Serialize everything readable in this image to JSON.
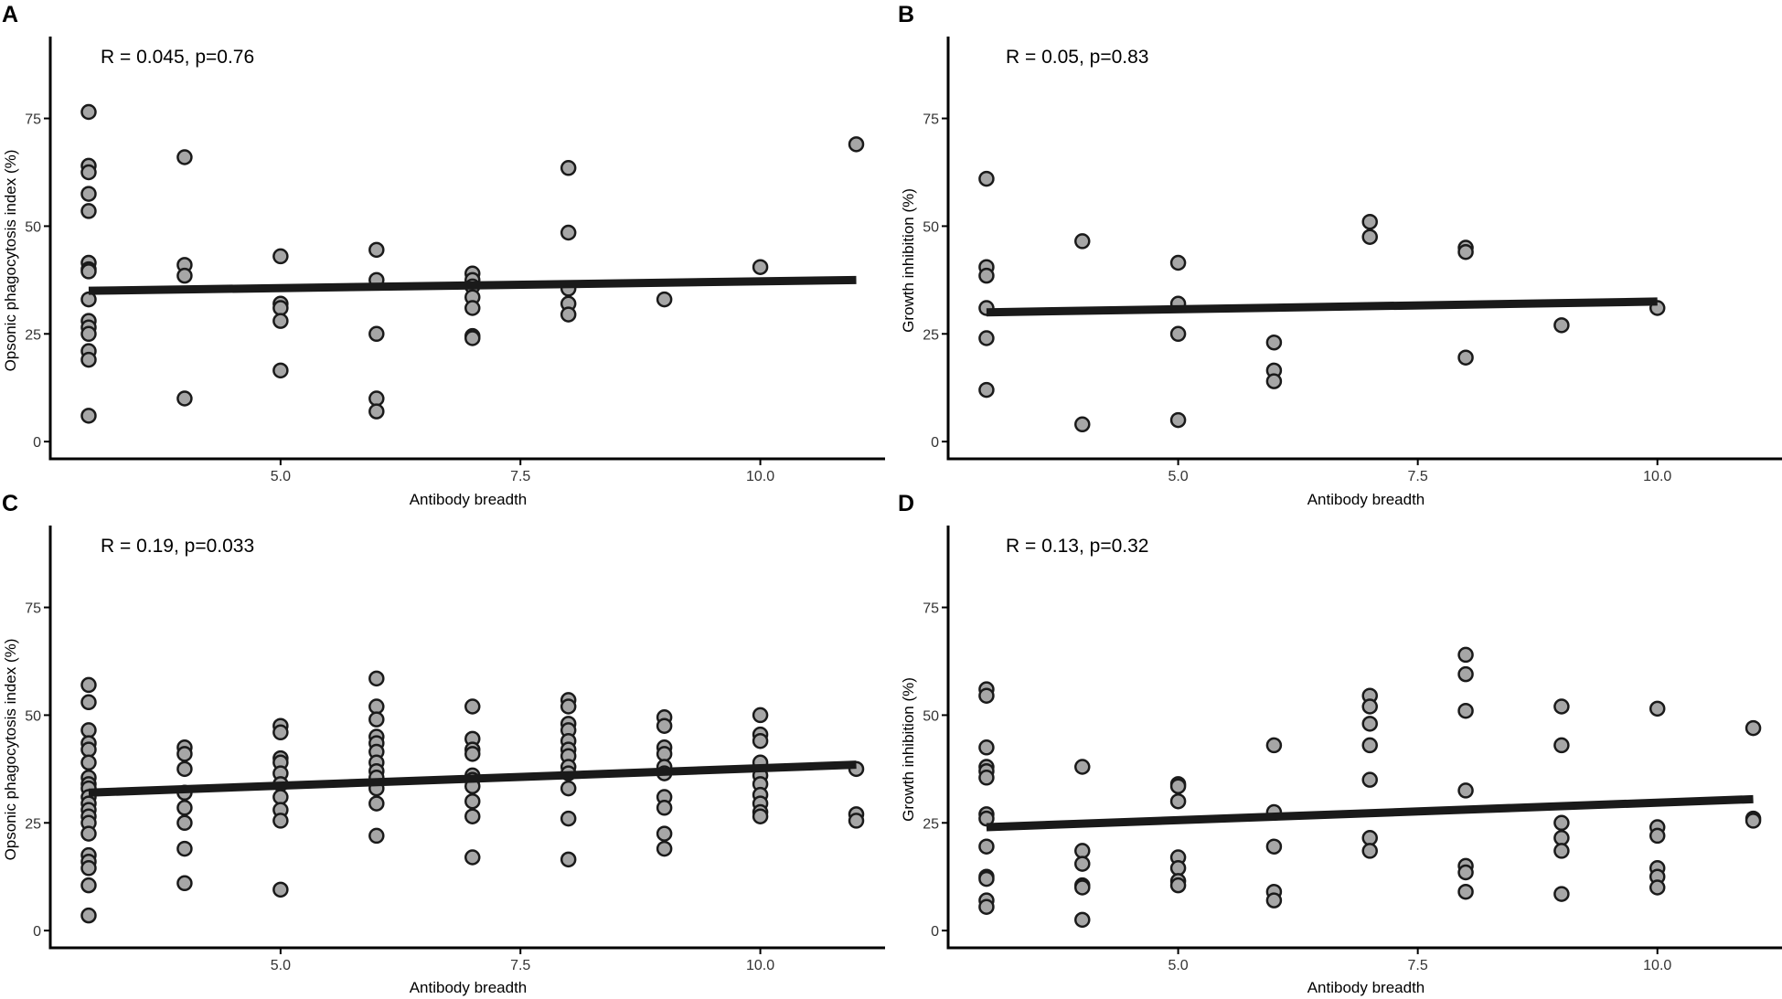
{
  "chart_data": [
    {
      "type": "scatter",
      "panel": "A",
      "annotation": "R = 0.045, p=0.76",
      "xlabel": "Antibody breadth",
      "ylabel": "Opsonic phagocytosis index (%)",
      "xlim": [
        2.6,
        11.3
      ],
      "ylim": [
        -4,
        94
      ],
      "xticks": [
        5.0,
        7.5,
        10.0
      ],
      "xtick_labels": [
        "5.0",
        "7.5",
        "10.0"
      ],
      "yticks": [
        0,
        25,
        50,
        75
      ],
      "ytick_labels": [
        "0",
        "25",
        "50",
        "75"
      ],
      "points": [
        [
          3,
          76.5
        ],
        [
          3,
          64
        ],
        [
          3,
          62.5
        ],
        [
          3,
          57.5
        ],
        [
          3,
          53.5
        ],
        [
          3,
          41.5
        ],
        [
          3,
          40
        ],
        [
          3,
          39.5
        ],
        [
          3,
          33
        ],
        [
          3,
          28
        ],
        [
          3,
          26.5
        ],
        [
          3,
          25
        ],
        [
          3,
          21
        ],
        [
          3,
          19
        ],
        [
          3,
          6
        ],
        [
          4,
          66
        ],
        [
          4,
          41
        ],
        [
          4,
          38.5
        ],
        [
          4,
          10
        ],
        [
          5,
          43
        ],
        [
          5,
          32
        ],
        [
          5,
          31
        ],
        [
          5,
          28
        ],
        [
          5,
          16.5
        ],
        [
          6,
          44.5
        ],
        [
          6,
          37.5
        ],
        [
          6,
          25
        ],
        [
          6,
          10
        ],
        [
          6,
          7
        ],
        [
          7,
          39
        ],
        [
          7,
          37.5
        ],
        [
          7,
          36
        ],
        [
          7,
          33.5
        ],
        [
          7,
          31
        ],
        [
          7,
          24.5
        ],
        [
          7,
          24
        ],
        [
          8,
          63.5
        ],
        [
          8,
          48.5
        ],
        [
          8,
          35.5
        ],
        [
          8,
          32
        ],
        [
          8,
          29.5
        ],
        [
          9,
          33
        ],
        [
          10,
          40.5
        ],
        [
          11,
          69
        ]
      ],
      "fit": {
        "x": [
          3,
          11
        ],
        "y": [
          35,
          37.5
        ]
      }
    },
    {
      "type": "scatter",
      "panel": "B",
      "annotation": "R = 0.05, p=0.83",
      "xlabel": "Antibody breadth",
      "ylabel": "Growth inhibition (%)",
      "xlim": [
        2.6,
        11.3
      ],
      "ylim": [
        -4,
        94
      ],
      "xticks": [
        5.0,
        7.5,
        10.0
      ],
      "xtick_labels": [
        "5.0",
        "7.5",
        "10.0"
      ],
      "yticks": [
        0,
        25,
        50,
        75
      ],
      "ytick_labels": [
        "0",
        "25",
        "50",
        "75"
      ],
      "points": [
        [
          3,
          61
        ],
        [
          3,
          40.5
        ],
        [
          3,
          38.5
        ],
        [
          3,
          31
        ],
        [
          3,
          24
        ],
        [
          3,
          12
        ],
        [
          4,
          46.5
        ],
        [
          4,
          4
        ],
        [
          5,
          41.5
        ],
        [
          5,
          32
        ],
        [
          5,
          25
        ],
        [
          5,
          5
        ],
        [
          6,
          23
        ],
        [
          6,
          16.5
        ],
        [
          6,
          14
        ],
        [
          7,
          51
        ],
        [
          7,
          47.5
        ],
        [
          8,
          45
        ],
        [
          8,
          44
        ],
        [
          8,
          19.5
        ],
        [
          9,
          27
        ],
        [
          10,
          31
        ]
      ],
      "fit": {
        "x": [
          3,
          10
        ],
        "y": [
          30,
          32.5
        ]
      }
    },
    {
      "type": "scatter",
      "panel": "C",
      "annotation": "R = 0.19, p=0.033",
      "xlabel": "Antibody breadth",
      "ylabel": "Opsonic phagocytosis index (%)",
      "xlim": [
        2.6,
        11.3
      ],
      "ylim": [
        -4,
        94
      ],
      "xticks": [
        5.0,
        7.5,
        10.0
      ],
      "xtick_labels": [
        "5.0",
        "7.5",
        "10.0"
      ],
      "yticks": [
        0,
        25,
        50,
        75
      ],
      "ytick_labels": [
        "0",
        "25",
        "50",
        "75"
      ],
      "points": [
        [
          3,
          57
        ],
        [
          3,
          53
        ],
        [
          3,
          46.5
        ],
        [
          3,
          43.5
        ],
        [
          3,
          42
        ],
        [
          3,
          39
        ],
        [
          3,
          35.5
        ],
        [
          3,
          34
        ],
        [
          3,
          33
        ],
        [
          3,
          31
        ],
        [
          3,
          29.5
        ],
        [
          3,
          28
        ],
        [
          3,
          26.5
        ],
        [
          3,
          25
        ],
        [
          3,
          22.5
        ],
        [
          3,
          17.5
        ],
        [
          3,
          16
        ],
        [
          3,
          14.5
        ],
        [
          3,
          10.5
        ],
        [
          3,
          3.5
        ],
        [
          4,
          42.5
        ],
        [
          4,
          41
        ],
        [
          4,
          37.5
        ],
        [
          4,
          32
        ],
        [
          4,
          28.5
        ],
        [
          4,
          25
        ],
        [
          4,
          19
        ],
        [
          4,
          11
        ],
        [
          5,
          47.5
        ],
        [
          5,
          46
        ],
        [
          5,
          40
        ],
        [
          5,
          39
        ],
        [
          5,
          36.5
        ],
        [
          5,
          34
        ],
        [
          5,
          31
        ],
        [
          5,
          28
        ],
        [
          5,
          25.5
        ],
        [
          5,
          9.5
        ],
        [
          6,
          58.5
        ],
        [
          6,
          52
        ],
        [
          6,
          49
        ],
        [
          6,
          45
        ],
        [
          6,
          43.5
        ],
        [
          6,
          41.5
        ],
        [
          6,
          39
        ],
        [
          6,
          37
        ],
        [
          6,
          35.5
        ],
        [
          6,
          33
        ],
        [
          6,
          29.5
        ],
        [
          6,
          22
        ],
        [
          7,
          52
        ],
        [
          7,
          44.5
        ],
        [
          7,
          42
        ],
        [
          7,
          41
        ],
        [
          7,
          36
        ],
        [
          7,
          35
        ],
        [
          7,
          33.5
        ],
        [
          7,
          30
        ],
        [
          7,
          26.5
        ],
        [
          7,
          17
        ],
        [
          8,
          53.5
        ],
        [
          8,
          52
        ],
        [
          8,
          48
        ],
        [
          8,
          46.5
        ],
        [
          8,
          44
        ],
        [
          8,
          42
        ],
        [
          8,
          40.5
        ],
        [
          8,
          38
        ],
        [
          8,
          36.5
        ],
        [
          8,
          33
        ],
        [
          8,
          26
        ],
        [
          8,
          16.5
        ],
        [
          9,
          49.5
        ],
        [
          9,
          47.5
        ],
        [
          9,
          42.5
        ],
        [
          9,
          41
        ],
        [
          9,
          38
        ],
        [
          9,
          36.5
        ],
        [
          9,
          31
        ],
        [
          9,
          28.5
        ],
        [
          9,
          22.5
        ],
        [
          9,
          19
        ],
        [
          10,
          50
        ],
        [
          10,
          45.5
        ],
        [
          10,
          44
        ],
        [
          10,
          39
        ],
        [
          10,
          36
        ],
        [
          10,
          34
        ],
        [
          10,
          31.5
        ],
        [
          10,
          29.5
        ],
        [
          10,
          27.5
        ],
        [
          10,
          26.5
        ],
        [
          11,
          37.5
        ],
        [
          11,
          27
        ],
        [
          11,
          25.5
        ]
      ],
      "fit": {
        "x": [
          3,
          11
        ],
        "y": [
          32,
          38.5
        ]
      }
    },
    {
      "type": "scatter",
      "panel": "D",
      "annotation": "R = 0.13, p=0.32",
      "xlabel": "Antibody breadth",
      "ylabel": "Growth inhibition (%)",
      "xlim": [
        2.6,
        11.3
      ],
      "ylim": [
        -4,
        94
      ],
      "xticks": [
        5.0,
        7.5,
        10.0
      ],
      "xtick_labels": [
        "5.0",
        "7.5",
        "10.0"
      ],
      "yticks": [
        0,
        25,
        50,
        75
      ],
      "ytick_labels": [
        "0",
        "25",
        "50",
        "75"
      ],
      "points": [
        [
          3,
          56
        ],
        [
          3,
          54.5
        ],
        [
          3,
          42.5
        ],
        [
          3,
          38
        ],
        [
          3,
          37
        ],
        [
          3,
          35.5
        ],
        [
          3,
          27
        ],
        [
          3,
          26
        ],
        [
          3,
          19.5
        ],
        [
          3,
          12.5
        ],
        [
          3,
          12
        ],
        [
          3,
          7
        ],
        [
          3,
          5.5
        ],
        [
          4,
          38
        ],
        [
          4,
          18.5
        ],
        [
          4,
          15.5
        ],
        [
          4,
          10.5
        ],
        [
          4,
          10
        ],
        [
          4,
          2.5
        ],
        [
          5,
          34
        ],
        [
          5,
          33.5
        ],
        [
          5,
          30
        ],
        [
          5,
          17
        ],
        [
          5,
          14.5
        ],
        [
          5,
          11.5
        ],
        [
          5,
          10.5
        ],
        [
          6,
          43
        ],
        [
          6,
          27.5
        ],
        [
          6,
          19.5
        ],
        [
          6,
          9
        ],
        [
          6,
          7
        ],
        [
          7,
          54.5
        ],
        [
          7,
          52
        ],
        [
          7,
          48
        ],
        [
          7,
          43
        ],
        [
          7,
          35
        ],
        [
          7,
          21.5
        ],
        [
          7,
          18.5
        ],
        [
          8,
          64
        ],
        [
          8,
          59.5
        ],
        [
          8,
          51
        ],
        [
          8,
          32.5
        ],
        [
          8,
          15
        ],
        [
          8,
          13.5
        ],
        [
          8,
          9
        ],
        [
          9,
          52
        ],
        [
          9,
          43
        ],
        [
          9,
          25
        ],
        [
          9,
          21.5
        ],
        [
          9,
          18.5
        ],
        [
          9,
          8.5
        ],
        [
          10,
          51.5
        ],
        [
          10,
          24
        ],
        [
          10,
          22
        ],
        [
          10,
          14.5
        ],
        [
          10,
          12.5
        ],
        [
          10,
          10
        ],
        [
          11,
          47
        ],
        [
          11,
          26
        ],
        [
          11,
          25.5
        ]
      ],
      "fit": {
        "x": [
          3,
          11
        ],
        "y": [
          24,
          30.5
        ]
      }
    }
  ]
}
